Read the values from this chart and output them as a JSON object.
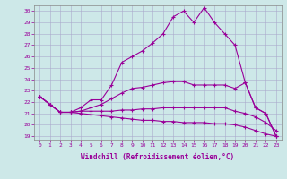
{
  "xlabel": "Windchill (Refroidissement éolien,°C)",
  "background_color": "#cde8e8",
  "grid_color": "#aaaacc",
  "line_color": "#990099",
  "x": [
    0,
    1,
    2,
    3,
    4,
    5,
    6,
    7,
    8,
    9,
    10,
    11,
    12,
    13,
    14,
    15,
    16,
    17,
    18,
    19,
    20,
    21,
    22,
    23
  ],
  "top_line": [
    22.5,
    21.8,
    21.1,
    21.1,
    21.5,
    22.2,
    22.2,
    23.5,
    25.5,
    26.0,
    26.5,
    27.2,
    28.0,
    29.5,
    30.0,
    29.0,
    30.3,
    29.0,
    28.0,
    27.0,
    23.7,
    21.5,
    21.0,
    19.0
  ],
  "mid_upper": [
    22.5,
    21.8,
    21.1,
    21.1,
    21.2,
    21.5,
    21.8,
    22.3,
    22.8,
    23.2,
    23.3,
    23.5,
    23.7,
    23.8,
    23.8,
    23.5,
    23.5,
    23.5,
    23.5,
    23.2,
    23.7,
    21.5,
    21.0,
    19.0
  ],
  "mid_lower": [
    22.5,
    21.8,
    21.1,
    21.1,
    21.2,
    21.2,
    21.2,
    21.2,
    21.3,
    21.3,
    21.4,
    21.4,
    21.5,
    21.5,
    21.5,
    21.5,
    21.5,
    21.5,
    21.5,
    21.2,
    21.0,
    20.7,
    20.2,
    19.5
  ],
  "bot_line": [
    22.5,
    21.8,
    21.1,
    21.1,
    21.0,
    20.9,
    20.8,
    20.7,
    20.6,
    20.5,
    20.4,
    20.4,
    20.3,
    20.3,
    20.2,
    20.2,
    20.2,
    20.1,
    20.1,
    20.0,
    19.8,
    19.5,
    19.2,
    19.0
  ],
  "ylim": [
    18.7,
    30.5
  ],
  "yticks": [
    19,
    20,
    21,
    22,
    23,
    24,
    25,
    26,
    27,
    28,
    29,
    30
  ],
  "xticks": [
    0,
    1,
    2,
    3,
    4,
    5,
    6,
    7,
    8,
    9,
    10,
    11,
    12,
    13,
    14,
    15,
    16,
    17,
    18,
    19,
    20,
    21,
    22,
    23
  ]
}
